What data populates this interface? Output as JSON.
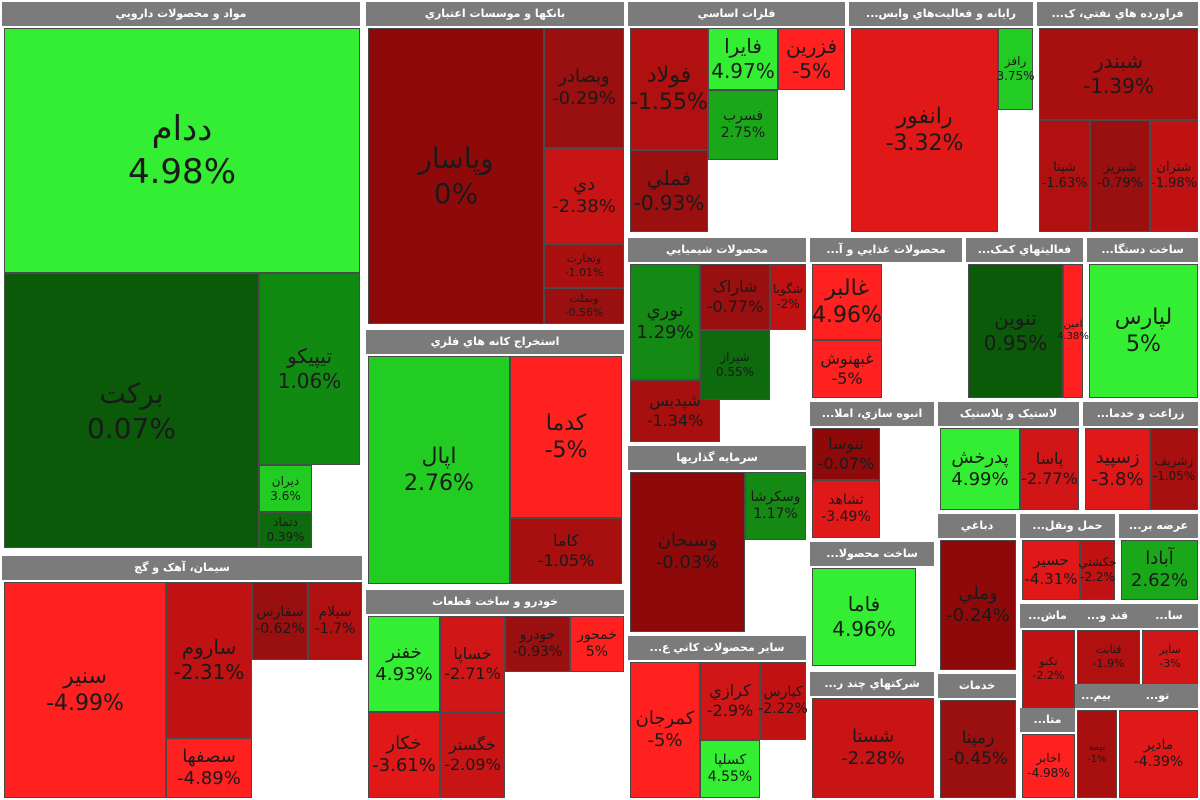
{
  "chart_data": {
    "type": "treemap",
    "sectors": [
      {
        "id": "s1",
        "title": "مواد و محصولات دارويي",
        "tiles": [
          {
            "symbol": "ددام",
            "change": "4.98%",
            "color": "#33ee33"
          },
          {
            "symbol": "برکت",
            "change": "0.07%",
            "color": "#0a5a0a"
          },
          {
            "symbol": "تيپيکو",
            "change": "1.06%",
            "color": "#118a11"
          },
          {
            "symbol": "ديران",
            "change": "3.6%",
            "color": "#22cc22"
          },
          {
            "symbol": "دتماد",
            "change": "0.39%",
            "color": "#0d6a0d"
          }
        ]
      },
      {
        "id": "s2",
        "title": "بانکها و موسسات اعتباري",
        "tiles": [
          {
            "symbol": "وپاسار",
            "change": "0%",
            "color": "#8e0a0a"
          },
          {
            "symbol": "وبصادر",
            "change": "-0.29%",
            "color": "#9a0f0f"
          },
          {
            "symbol": "دي",
            "change": "-2.38%",
            "color": "#c81414"
          },
          {
            "symbol": "وتجارت",
            "change": "-1.01%",
            "color": "#aa1010"
          },
          {
            "symbol": "وبملت",
            "change": "-0.56%",
            "color": "#9a0f0f"
          }
        ]
      },
      {
        "id": "s3",
        "title": "فلزات اساسي",
        "tiles": [
          {
            "symbol": "فولاد",
            "change": "-1.55%",
            "color": "#b01010"
          },
          {
            "symbol": "فايرا",
            "change": "4.97%",
            "color": "#33ee33"
          },
          {
            "symbol": "فزرين",
            "change": "-5%",
            "color": "#ff2020"
          },
          {
            "symbol": "فملي",
            "change": "-0.93%",
            "color": "#9a0f0f"
          },
          {
            "symbol": "فسرب",
            "change": "2.75%",
            "color": "#1aa81a"
          }
        ]
      },
      {
        "id": "s4",
        "title": "رايانه و فعاليت‌هاي وابس...",
        "tiles": [
          {
            "symbol": "رانفور",
            "change": "-3.32%",
            "color": "#e01818"
          },
          {
            "symbol": "رافز",
            "change": "3.75%",
            "color": "#22cc22"
          }
        ]
      },
      {
        "id": "s5",
        "title": "فراورده هاي نفتي، ک...",
        "tiles": [
          {
            "symbol": "شبندر",
            "change": "-1.39%",
            "color": "#a80f0f"
          },
          {
            "symbol": "شپنا",
            "change": "-1.63%",
            "color": "#b01010"
          },
          {
            "symbol": "شبريز",
            "change": "-0.79%",
            "color": "#9a0f0f"
          },
          {
            "symbol": "شتران",
            "change": "-1.98%",
            "color": "#c01212"
          }
        ]
      },
      {
        "id": "s6",
        "title": "محصولات شيميايي",
        "tiles": [
          {
            "symbol": "نوري",
            "change": "1.29%",
            "color": "#148a14"
          },
          {
            "symbol": "شاراک",
            "change": "-0.77%",
            "color": "#9a0f0f"
          },
          {
            "symbol": "شگويا",
            "change": "-2%",
            "color": "#c01212"
          },
          {
            "symbol": "شپديس",
            "change": "-1.34%",
            "color": "#a80f0f"
          },
          {
            "symbol": "شيراز",
            "change": "0.55%",
            "color": "#0d6a0d"
          }
        ]
      },
      {
        "id": "s7",
        "title": "محصولات غذايي و آ...",
        "tiles": [
          {
            "symbol": "غالبر",
            "change": "4.96%",
            "color": "#ff2020"
          },
          {
            "symbol": "غبهنوش",
            "change": "-5%",
            "color": "#ff2020"
          }
        ]
      },
      {
        "id": "s8",
        "title": "فعاليتهاي کمک...",
        "tiles": [
          {
            "symbol": "تنوين",
            "change": "0.95%",
            "color": "#0a5a0a"
          },
          {
            "symbol": "امين",
            "change": "4.38%",
            "color": "#ff2020"
          }
        ]
      },
      {
        "id": "s9",
        "title": "ساخت دستگا...",
        "tiles": [
          {
            "symbol": "لپارس",
            "change": "5%",
            "color": "#33ee33"
          }
        ]
      },
      {
        "id": "s10",
        "title": "استخراج کانه هاي فلزي",
        "tiles": [
          {
            "symbol": "اپال",
            "change": "2.76%",
            "color": "#22cc22"
          },
          {
            "symbol": "کدما",
            "change": "-5%",
            "color": "#ff2020"
          },
          {
            "symbol": "کاما",
            "change": "-1.05%",
            "color": "#a80f0f"
          }
        ]
      },
      {
        "id": "s11",
        "title": "سرمايه گذاريها",
        "tiles": [
          {
            "symbol": "وسبحان",
            "change": "-0.03%",
            "color": "#8e0a0a"
          },
          {
            "symbol": "وسکرشا",
            "change": "1.17%",
            "color": "#148a14"
          }
        ]
      },
      {
        "id": "s12",
        "title": "انبوه سازي، املا...",
        "tiles": [
          {
            "symbol": "ثنوسا",
            "change": "-0.07%",
            "color": "#8e0a0a"
          },
          {
            "symbol": "ثشاهد",
            "change": "-3.49%",
            "color": "#e01818"
          }
        ]
      },
      {
        "id": "s13",
        "title": "لاستيک و پلاستيک",
        "tiles": [
          {
            "symbol": "پدرخش",
            "change": "4.99%",
            "color": "#33ee33"
          },
          {
            "symbol": "پاسا",
            "change": "-2.77%",
            "color": "#d01616"
          }
        ]
      },
      {
        "id": "s14",
        "title": "زراعت و خدما...",
        "tiles": [
          {
            "symbol": "زسپيد",
            "change": "-3.8%",
            "color": "#e01818"
          },
          {
            "symbol": "زشريف",
            "change": "-1.05%",
            "color": "#a80f0f"
          }
        ]
      },
      {
        "id": "s15",
        "title": "سيمان، آهک و گچ",
        "tiles": [
          {
            "symbol": "سنير",
            "change": "-4.99%",
            "color": "#ff2020"
          },
          {
            "symbol": "ساروم",
            "change": "-2.31%",
            "color": "#c01212"
          },
          {
            "symbol": "سصفها",
            "change": "-4.89%",
            "color": "#ff2020"
          },
          {
            "symbol": "سفارس",
            "change": "-0.62%",
            "color": "#9a0f0f"
          },
          {
            "symbol": "سيلام",
            "change": "-1.7%",
            "color": "#b01010"
          }
        ]
      },
      {
        "id": "s16",
        "title": "خودرو و ساخت قطعات",
        "tiles": [
          {
            "symbol": "خفنر",
            "change": "4.93%",
            "color": "#33ee33"
          },
          {
            "symbol": "خساپا",
            "change": "-2.71%",
            "color": "#d01616"
          },
          {
            "symbol": "خودرو",
            "change": "-0.93%",
            "color": "#9a0f0f"
          },
          {
            "symbol": "خمحور",
            "change": "5%",
            "color": "#ff2020"
          },
          {
            "symbol": "خکار",
            "change": "-3.61%",
            "color": "#e01818"
          },
          {
            "symbol": "خگستر",
            "change": "-2.09%",
            "color": "#c81414"
          }
        ]
      },
      {
        "id": "s17",
        "title": "ساير محصولات کاني ع...",
        "tiles": [
          {
            "symbol": "کمرجان",
            "change": "-5%",
            "color": "#ff2020"
          },
          {
            "symbol": "کرازي",
            "change": "-2.9%",
            "color": "#d01616"
          },
          {
            "symbol": "کپارس",
            "change": "-2.22%",
            "color": "#c01212"
          },
          {
            "symbol": "کسلپا",
            "change": "4.55%",
            "color": "#33ee33"
          }
        ]
      },
      {
        "id": "s18",
        "title": "ساخت محصولا...",
        "tiles": [
          {
            "symbol": "فاما",
            "change": "4.96%",
            "color": "#33ee33"
          }
        ]
      },
      {
        "id": "s19",
        "title": "شرکتهاي چند ر...",
        "tiles": [
          {
            "symbol": "شستا",
            "change": "-2.28%",
            "color": "#c81414"
          }
        ]
      },
      {
        "id": "s20",
        "title": "دباغي",
        "tiles": [
          {
            "symbol": "وملي",
            "change": "-0.24%",
            "color": "#8e0a0a"
          }
        ]
      },
      {
        "id": "s21",
        "title": "حمل ونقل...",
        "tiles": [
          {
            "symbol": "حسير",
            "change": "-4.31%",
            "color": "#e01818"
          },
          {
            "symbol": "حکشتي",
            "change": "-2.2%",
            "color": "#c01212"
          }
        ]
      },
      {
        "id": "s22",
        "title": "عرضه بر...",
        "tiles": [
          {
            "symbol": "آبادا",
            "change": "2.62%",
            "color": "#1aa81a"
          }
        ]
      },
      {
        "id": "s23",
        "title": "خدمات",
        "tiles": [
          {
            "symbol": "رمپنا",
            "change": "-0.45%",
            "color": "#9a0f0f"
          }
        ]
      },
      {
        "id": "s24",
        "title": "ماش...",
        "tiles": [
          {
            "symbol": "تکنو",
            "change": "-2.2%",
            "color": "#c01212"
          }
        ]
      },
      {
        "id": "s25",
        "title": "قند و...",
        "tiles": [
          {
            "symbol": "قثابت",
            "change": "-1.9%",
            "color": "#b01010"
          }
        ]
      },
      {
        "id": "s26",
        "title": "سا...",
        "tiles": [
          {
            "symbol": "ساير",
            "change": "-3%",
            "color": "#d01616"
          }
        ]
      },
      {
        "id": "s27",
        "title": "متا...",
        "tiles": [
          {
            "symbol": "اخابر",
            "change": "-4.98%",
            "color": "#ff2020"
          }
        ]
      },
      {
        "id": "s28",
        "title": "بيم...",
        "tiles": [
          {
            "symbol": "بيمه",
            "change": "-1%",
            "color": "#a80f0f"
          }
        ]
      },
      {
        "id": "s29",
        "title": "تو...",
        "tiles": [
          {
            "symbol": "مادير",
            "change": "-4.39%",
            "color": "#e01818"
          }
        ]
      }
    ]
  }
}
